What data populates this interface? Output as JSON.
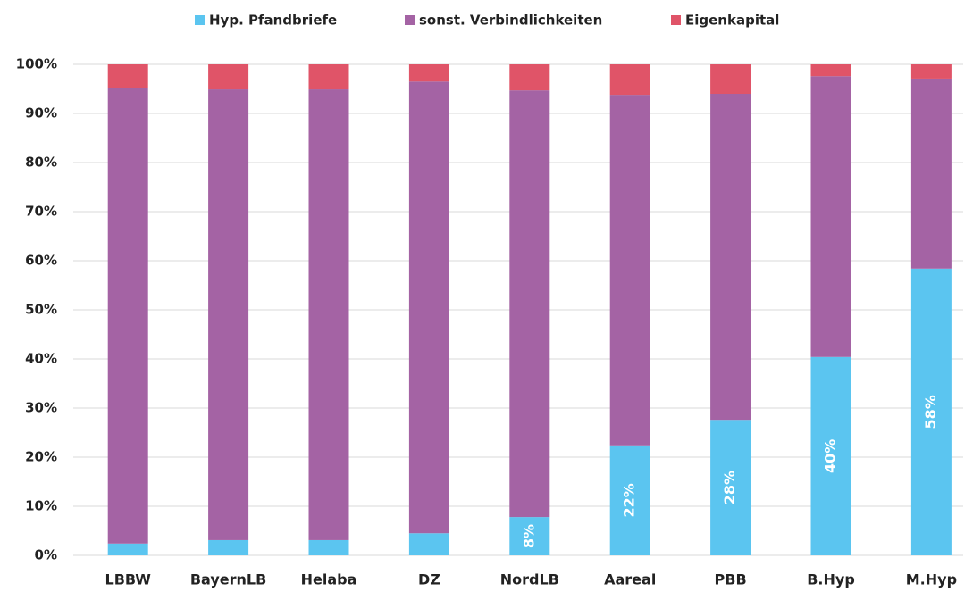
{
  "chart_data": {
    "type": "stacked_bar",
    "categories": [
      "LBBW",
      "BayernLB",
      "Helaba",
      "DZ",
      "NordLB",
      "Aareal",
      "PBB",
      "B.Hyp",
      "M.Hyp"
    ],
    "series": [
      {
        "name": "Hyp. Pfandbriefe",
        "color": "#5bc5f0",
        "values": [
          2.4,
          3.1,
          3.1,
          4.5,
          7.8,
          22.4,
          27.6,
          40.4,
          58.4
        ],
        "value_labels": [
          null,
          null,
          null,
          null,
          "8%",
          "22%",
          "28%",
          "40%",
          "58%"
        ]
      },
      {
        "name": "sonst. Verbindlichkeiten",
        "color": "#a463a4",
        "values": [
          92.7,
          91.8,
          91.8,
          92.0,
          86.9,
          71.4,
          66.4,
          57.2,
          38.7
        ]
      },
      {
        "name": "Eigenkapital",
        "color": "#e05468",
        "values": [
          4.9,
          5.1,
          5.1,
          3.5,
          5.3,
          6.2,
          6.0,
          2.4,
          2.9
        ]
      }
    ],
    "ylim": [
      0,
      100
    ],
    "yticks": [
      {
        "value": 0,
        "label": "0%"
      },
      {
        "value": 10,
        "label": "10%"
      },
      {
        "value": 20,
        "label": "20%"
      },
      {
        "value": 30,
        "label": "30%"
      },
      {
        "value": 40,
        "label": "40%"
      },
      {
        "value": 50,
        "label": "50%"
      },
      {
        "value": 60,
        "label": "60%"
      },
      {
        "value": 70,
        "label": "70%"
      },
      {
        "value": 80,
        "label": "80%"
      },
      {
        "value": 90,
        "label": "90%"
      },
      {
        "value": 100,
        "label": "100%"
      }
    ],
    "grid": true,
    "legend": "top"
  }
}
